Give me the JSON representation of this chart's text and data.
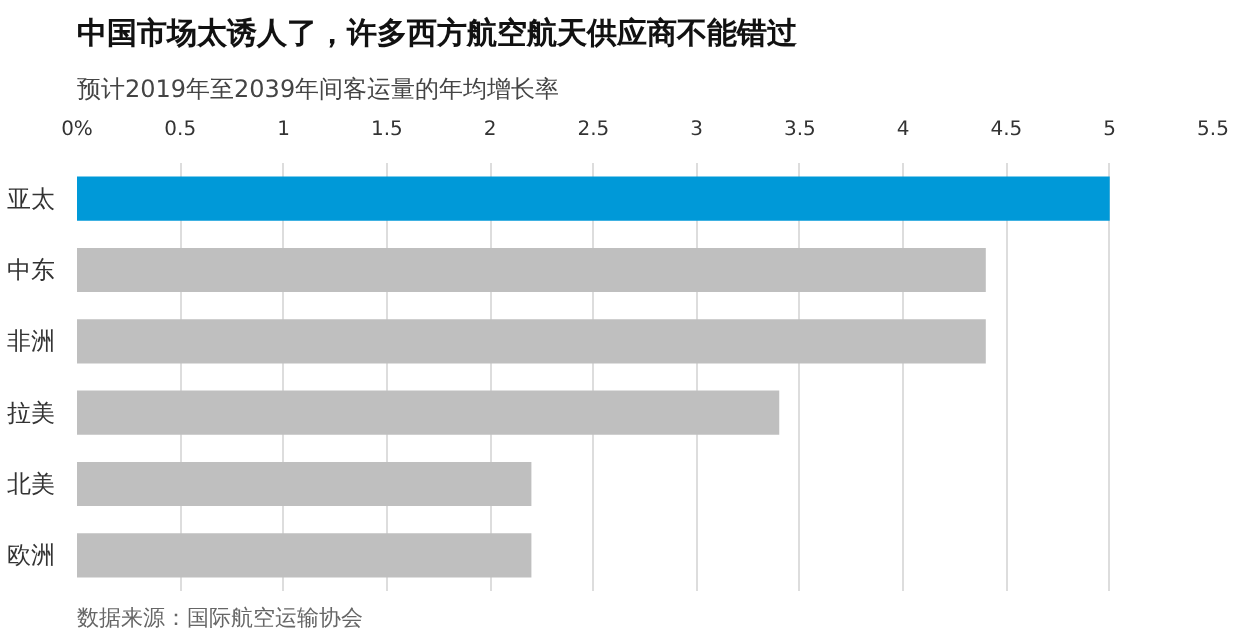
{
  "chart_data": {
    "type": "bar",
    "orientation": "horizontal",
    "title": "中国市场太诱人了，许多西方航空航天供应商不能错过",
    "subtitle": "预计2019年至2039年间客运量的年均增长率",
    "categories": [
      "亚太",
      "中东",
      "非洲",
      "拉美",
      "北美",
      "欧洲"
    ],
    "values": [
      5.0,
      4.4,
      4.4,
      3.4,
      2.2,
      2.2
    ],
    "colors": [
      "#0099d8",
      "#bfbfbf",
      "#bfbfbf",
      "#bfbfbf",
      "#bfbfbf",
      "#bfbfbf"
    ],
    "xlim": [
      0,
      5.5
    ],
    "xticks": [
      {
        "value": 0,
        "label": "0%"
      },
      0.5,
      1,
      1.5,
      2,
      2.5,
      3,
      3.5,
      4,
      4.5,
      5,
      5.5
    ],
    "grid": "x",
    "annotations": [
      "数据来源：国际航空运输协会"
    ]
  }
}
